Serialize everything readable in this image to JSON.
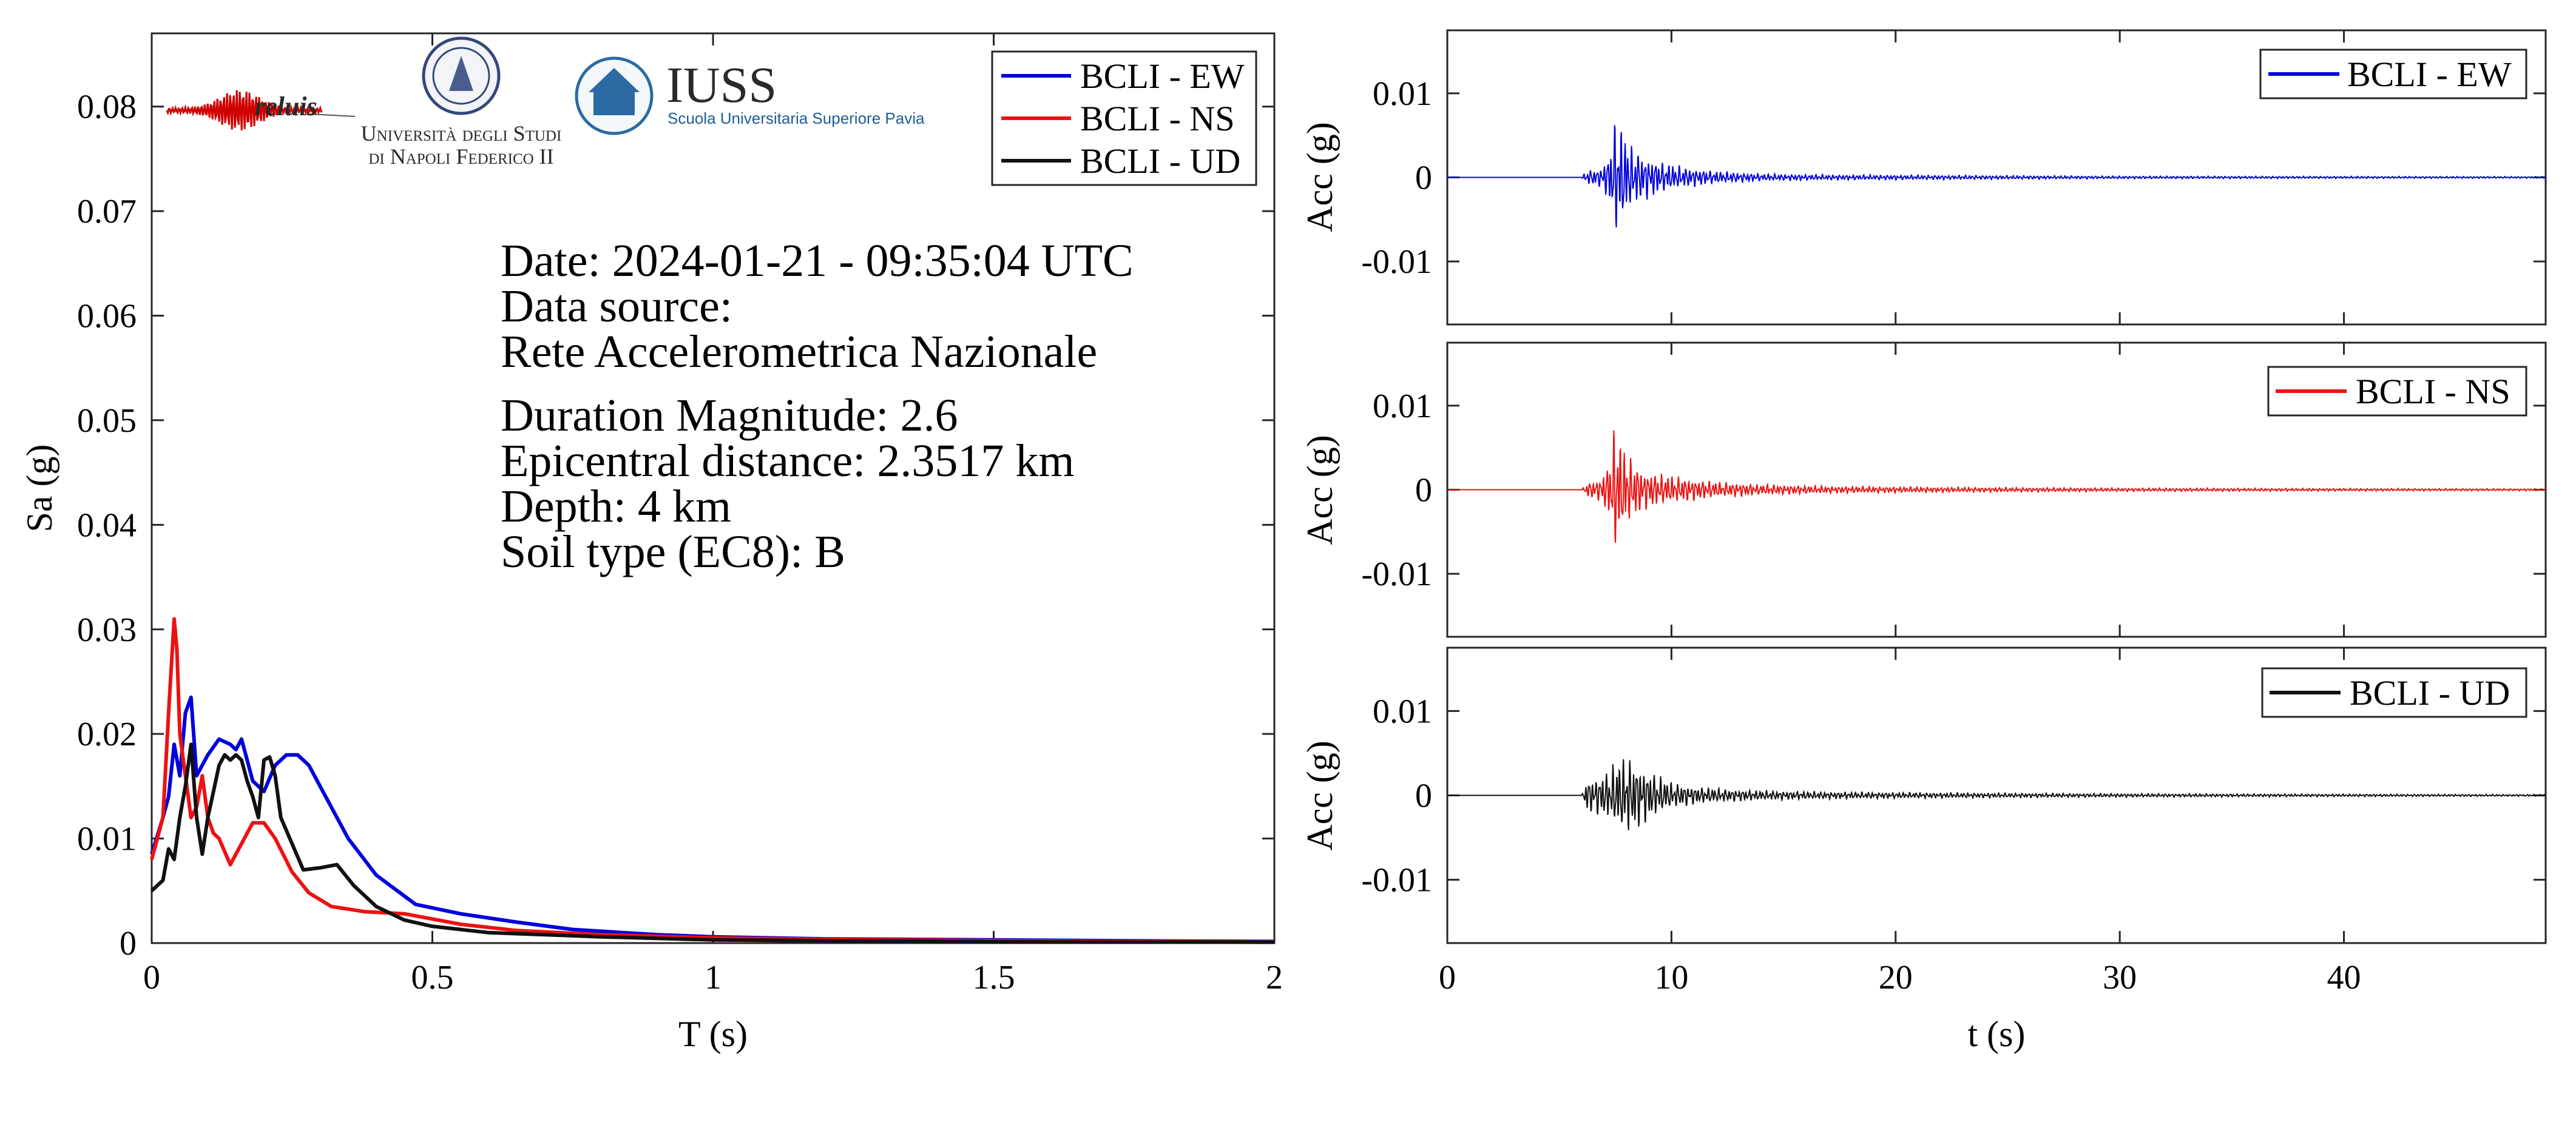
{
  "chart_data": [
    {
      "id": "spectrum",
      "type": "line",
      "xlabel": "T (s)",
      "ylabel": "Sa (g)",
      "xlim": [
        0,
        2
      ],
      "ylim": [
        0,
        0.087
      ],
      "xticks": [
        0,
        0.5,
        1,
        1.5,
        2
      ],
      "xtick_labels": [
        "0",
        "0.5",
        "1",
        "1.5",
        "2"
      ],
      "yticks": [
        0,
        0.01,
        0.02,
        0.03,
        0.04,
        0.05,
        0.06,
        0.07,
        0.08
      ],
      "ytick_labels": [
        "0",
        "0.01",
        "0.02",
        "0.03",
        "0.04",
        "0.05",
        "0.06",
        "0.07",
        "0.08"
      ],
      "grid": false,
      "legend_position": "top-right",
      "series": [
        {
          "name": "BCLI - EW",
          "color": "#0000dd",
          "x": [
            0,
            0.02,
            0.03,
            0.04,
            0.05,
            0.06,
            0.07,
            0.08,
            0.1,
            0.12,
            0.14,
            0.15,
            0.16,
            0.17,
            0.18,
            0.2,
            0.22,
            0.24,
            0.26,
            0.28,
            0.3,
            0.35,
            0.4,
            0.47,
            0.55,
            0.65,
            0.75,
            0.9,
            1.0,
            1.2,
            1.5,
            1.8,
            2.0
          ],
          "y": [
            0.0085,
            0.012,
            0.014,
            0.019,
            0.016,
            0.022,
            0.0235,
            0.016,
            0.018,
            0.0195,
            0.019,
            0.0185,
            0.0195,
            0.0175,
            0.0155,
            0.0145,
            0.017,
            0.018,
            0.018,
            0.017,
            0.015,
            0.01,
            0.0065,
            0.0037,
            0.0028,
            0.002,
            0.0013,
            0.0008,
            0.0006,
            0.0004,
            0.0003,
            0.0002,
            0.00015
          ]
        },
        {
          "name": "BCLI - NS",
          "color": "#ee1111",
          "x": [
            0,
            0.02,
            0.03,
            0.04,
            0.045,
            0.05,
            0.06,
            0.07,
            0.08,
            0.09,
            0.1,
            0.11,
            0.12,
            0.14,
            0.16,
            0.18,
            0.2,
            0.22,
            0.25,
            0.28,
            0.32,
            0.38,
            0.45,
            0.55,
            0.65,
            0.8,
            1.0,
            1.3,
            1.6,
            2.0
          ],
          "y": [
            0.008,
            0.012,
            0.022,
            0.031,
            0.028,
            0.02,
            0.016,
            0.012,
            0.013,
            0.016,
            0.012,
            0.0105,
            0.01,
            0.0075,
            0.0095,
            0.0115,
            0.0115,
            0.01,
            0.0068,
            0.0048,
            0.0035,
            0.003,
            0.0028,
            0.0018,
            0.0012,
            0.0008,
            0.0005,
            0.0003,
            0.0002,
            0.0001
          ]
        },
        {
          "name": "BCLI - UD",
          "color": "#111111",
          "x": [
            0,
            0.02,
            0.03,
            0.04,
            0.05,
            0.06,
            0.07,
            0.08,
            0.09,
            0.1,
            0.11,
            0.12,
            0.13,
            0.14,
            0.15,
            0.16,
            0.17,
            0.18,
            0.19,
            0.2,
            0.21,
            0.22,
            0.23,
            0.25,
            0.27,
            0.3,
            0.33,
            0.36,
            0.4,
            0.45,
            0.5,
            0.6,
            0.8,
            1.0,
            1.3,
            1.6,
            2.0
          ],
          "y": [
            0.005,
            0.006,
            0.009,
            0.008,
            0.012,
            0.015,
            0.019,
            0.012,
            0.0085,
            0.012,
            0.0145,
            0.017,
            0.018,
            0.0175,
            0.018,
            0.0175,
            0.0155,
            0.014,
            0.012,
            0.0175,
            0.0178,
            0.016,
            0.012,
            0.0095,
            0.007,
            0.0072,
            0.0075,
            0.0055,
            0.0035,
            0.0022,
            0.0016,
            0.001,
            0.0006,
            0.0003,
            0.0002,
            0.0001,
            8e-05
          ]
        }
      ]
    },
    {
      "id": "acc-ew",
      "type": "line",
      "xlabel": "",
      "ylabel": "Acc (g)",
      "xlim": [
        0,
        49
      ],
      "ylim": [
        -0.0175,
        0.0175
      ],
      "xticks": [
        0,
        10,
        20,
        30,
        40
      ],
      "yticks": [
        -0.01,
        0,
        0.01
      ],
      "ytick_labels": [
        "-0.01",
        "0",
        "0.01"
      ],
      "legend_position": "top-right",
      "series": [
        {
          "name": "BCLI - EW",
          "color": "#0000dd",
          "envelope": {
            "t": [
              0,
              6.0,
              6.2,
              6.8,
              7.2,
              7.5,
              7.8,
              8.2,
              8.8,
              9.5,
              10.5,
              12.0,
              14.0,
              17.0,
              22.0,
              30.0,
              49.0
            ],
            "amp": [
              0.0,
              0.0,
              0.0008,
              0.001,
              0.0025,
              0.0068,
              0.0055,
              0.0035,
              0.0025,
              0.0018,
              0.0012,
              0.0007,
              0.0004,
              0.0003,
              0.00025,
              0.00015,
              0.0001
            ]
          }
        }
      ]
    },
    {
      "id": "acc-ns",
      "type": "line",
      "xlabel": "",
      "ylabel": "Acc (g)",
      "xlim": [
        0,
        49
      ],
      "ylim": [
        -0.0175,
        0.0175
      ],
      "xticks": [
        0,
        10,
        20,
        30,
        40
      ],
      "yticks": [
        -0.01,
        0,
        0.01
      ],
      "ytick_labels": [
        "-0.01",
        "0",
        "0.01"
      ],
      "legend_position": "top-right",
      "series": [
        {
          "name": "BCLI - NS",
          "color": "#ee1111",
          "envelope": {
            "t": [
              0,
              6.0,
              6.2,
              6.8,
              7.2,
              7.5,
              7.8,
              8.2,
              8.8,
              9.5,
              10.5,
              12.0,
              14.0,
              17.0,
              22.0,
              30.0,
              49.0
            ],
            "amp": [
              0.0,
              0.0,
              0.0008,
              0.0012,
              0.003,
              0.0078,
              0.005,
              0.0035,
              0.0022,
              0.0018,
              0.0014,
              0.0009,
              0.0006,
              0.0004,
              0.0003,
              0.0002,
              0.00012
            ]
          }
        }
      ]
    },
    {
      "id": "acc-ud",
      "type": "line",
      "xlabel": "t (s)",
      "ylabel": "Acc (g)",
      "xlim": [
        0,
        49
      ],
      "ylim": [
        -0.0175,
        0.0175
      ],
      "xticks": [
        0,
        10,
        20,
        30,
        40
      ],
      "xtick_labels": [
        "0",
        "10",
        "20",
        "30",
        "40"
      ],
      "yticks": [
        -0.01,
        0,
        0.01
      ],
      "ytick_labels": [
        "-0.01",
        "0",
        "0.01"
      ],
      "legend_position": "top-right",
      "series": [
        {
          "name": "BCLI - UD",
          "color": "#111111",
          "envelope": {
            "t": [
              0,
              6.0,
              6.2,
              6.8,
              7.2,
              7.6,
              8.0,
              8.6,
              9.2,
              10.0,
              11.0,
              12.5,
              14.5,
              17.0,
              22.0,
              30.0,
              49.0
            ],
            "amp": [
              0.0,
              0.0,
              0.0018,
              0.0022,
              0.0028,
              0.004,
              0.0045,
              0.0035,
              0.0025,
              0.0015,
              0.001,
              0.0007,
              0.0005,
              0.0004,
              0.0003,
              0.0002,
              0.0001
            ]
          }
        }
      ]
    }
  ],
  "info": {
    "date": "Date: 2024-01-21 - 09:35:04 UTC",
    "source_label": "Data source:",
    "source_name": "Rete Accelerometrica Nazionale",
    "magnitude": "Duration Magnitude: 2.6",
    "distance": "Epicentral distance: 2.3517 km",
    "depth": "Depth: 4 km",
    "soil": "Soil type (EC8): B"
  },
  "logos": {
    "reluis": "reluis",
    "unina_line1": "Università degli Studi",
    "unina_line2": "di Napoli Federico II",
    "iuss_name": "IUSS",
    "iuss_sub": "Scuola Universitaria Superiore Pavia"
  },
  "colors": {
    "ew": "#0000dd",
    "ns": "#ee1111",
    "ud": "#111111"
  }
}
